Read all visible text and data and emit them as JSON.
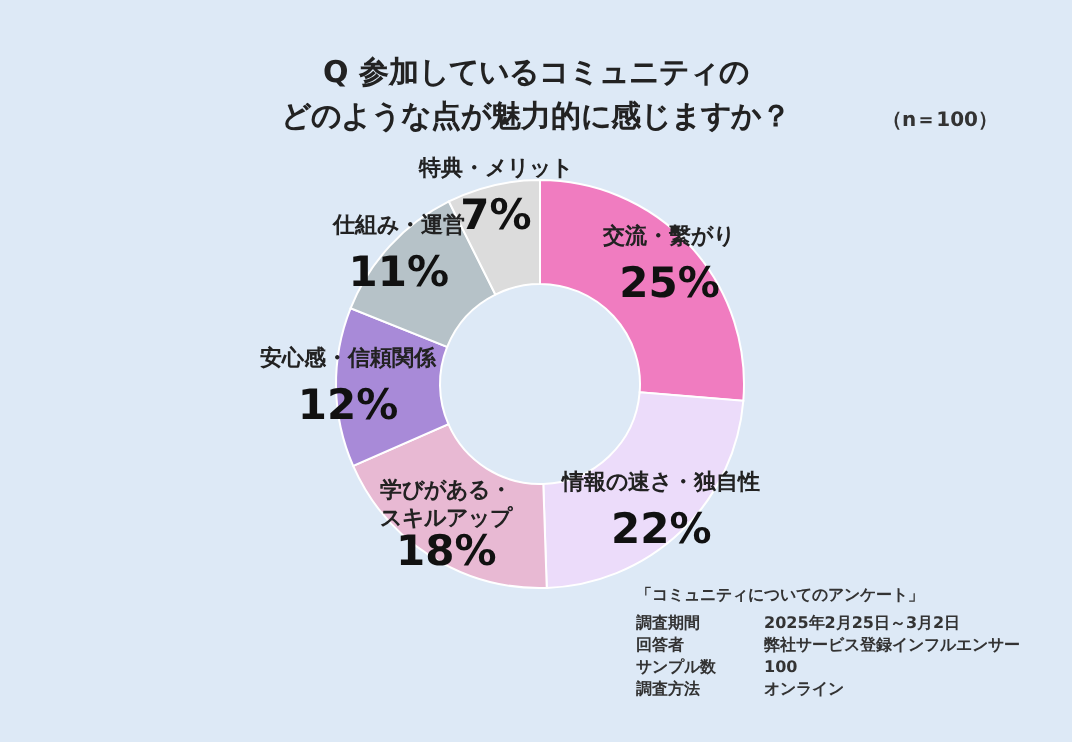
{
  "chart_data": {
    "type": "donut",
    "title": "Q 参加しているコミュニティの",
    "subtitle": "どのような点が魅力的に感じますか？",
    "categories": [
      "交流・繫がり",
      "情報の速さ・独自性",
      "学びがある・スキルアップ",
      "安心感・信頼関係",
      "仕組み・運営",
      "特典・メリット"
    ],
    "values": [
      25,
      22,
      18,
      12,
      11,
      7
    ],
    "value_labels": [
      "25%",
      "22%",
      "18%",
      "12%",
      "11%",
      "7%"
    ],
    "colors": [
      "#f07cc0",
      "#ecdcfa",
      "#e8b9d3",
      "#a88ad8",
      "#b6c2c8",
      "#dcdcdc"
    ],
    "annotations": [
      "（n＝100）",
      "「コミュニティについてのアンケート」",
      "調査期間",
      "2025年2月25日～3月2日",
      "回答者",
      "弊社サービス登録インフルエンサー",
      "サンプル数",
      "100",
      "調査方法",
      "オンライン"
    ]
  }
}
